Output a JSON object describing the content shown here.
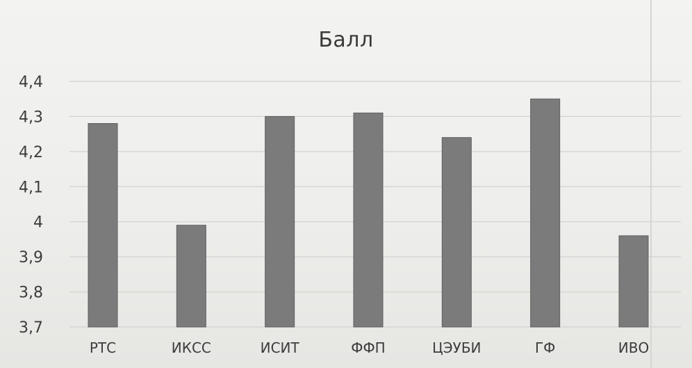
{
  "chart_data": {
    "type": "bar",
    "title": "Балл",
    "xlabel": "",
    "ylabel": "",
    "categories": [
      "РТС",
      "ИКСС",
      "ИСИТ",
      "ФФП",
      "ЦЭУБИ",
      "ГФ",
      "ИВО"
    ],
    "values": [
      4.28,
      3.99,
      4.3,
      4.31,
      4.24,
      4.35,
      3.96
    ],
    "ylim": [
      3.7,
      4.4
    ],
    "yticks": [
      "3,7",
      "3,8",
      "3,9",
      "4",
      "4,1",
      "4,2",
      "4,3",
      "4,4"
    ],
    "grid": true,
    "legend": "none",
    "bar_color": "#7b7b7b",
    "grid_color": "#d6d6d4"
  }
}
